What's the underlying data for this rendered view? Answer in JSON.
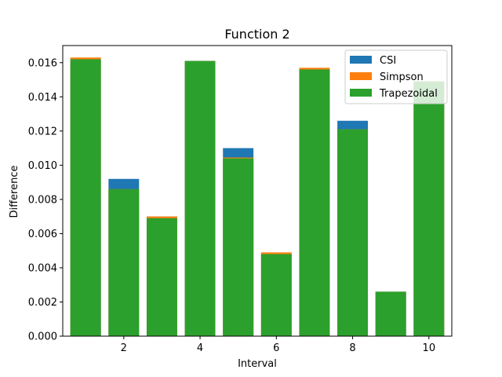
{
  "chart_data": {
    "type": "bar",
    "title": "Function 2",
    "xlabel": "Interval",
    "ylabel": "Difference",
    "x": [
      1,
      2,
      3,
      4,
      5,
      6,
      7,
      8,
      9,
      10
    ],
    "xticks": [
      2,
      4,
      6,
      8,
      10
    ],
    "xtick_labels": [
      "2",
      "4",
      "6",
      "8",
      "10"
    ],
    "xlim": [
      0.4,
      10.6
    ],
    "ylim": [
      0,
      0.017
    ],
    "yticks": [
      0,
      0.002,
      0.004,
      0.006,
      0.008,
      0.01,
      0.012,
      0.014,
      0.016
    ],
    "ytick_labels": [
      "0.000",
      "0.002",
      "0.004",
      "0.006",
      "0.008",
      "0.010",
      "0.012",
      "0.014",
      "0.016"
    ],
    "bar_width": 0.8,
    "grid": false,
    "legend_position": "top-right",
    "series": [
      {
        "name": "CSI",
        "color": "#1f77b4",
        "values": [
          0.0162,
          0.0092,
          0.007,
          0.0161,
          0.011,
          0.0048,
          0.0156,
          0.0126,
          0.0026,
          0.0149
        ]
      },
      {
        "name": "Simpson",
        "color": "#ff7f0e",
        "values": [
          0.0163,
          0.0086,
          0.007,
          0.0161,
          0.01045,
          0.0049,
          0.0157,
          0.0121,
          0.0026,
          0.0149
        ]
      },
      {
        "name": "Trapezoidal",
        "color": "#2ca02c",
        "values": [
          0.0162,
          0.0086,
          0.0069,
          0.0161,
          0.0104,
          0.0048,
          0.0156,
          0.0121,
          0.0026,
          0.0149
        ]
      }
    ]
  }
}
